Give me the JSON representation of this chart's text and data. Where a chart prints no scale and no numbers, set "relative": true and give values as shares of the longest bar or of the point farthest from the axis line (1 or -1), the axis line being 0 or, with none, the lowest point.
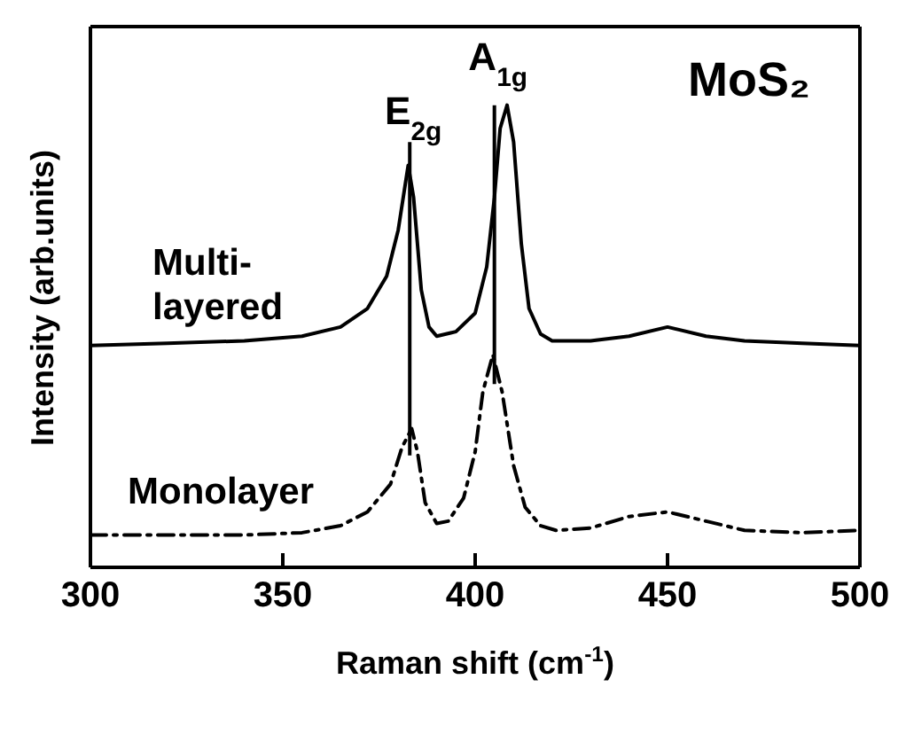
{
  "chart_data": {
    "type": "line",
    "relative": true,
    "xlabel": "Raman shift (cm$^{-1}$)",
    "ylabel": "Intensity (arb.units)",
    "xlim": [
      300,
      500
    ],
    "xticks": [
      300,
      350,
      400,
      450,
      500
    ],
    "legend": false,
    "grid": false,
    "marker": "none",
    "annotations": [
      "MoS₂"
    ],
    "ref_lines": [
      {
        "axis": "x",
        "value": 383,
        "label": "E$_{2g}$",
        "color": "#000000"
      },
      {
        "axis": "x",
        "value": 405,
        "label": "A$_{1g}$",
        "color": "#000000"
      }
    ],
    "series": [
      {
        "name": "Multi-layered",
        "color": "#000000",
        "line_style": "solid",
        "x": [
          300,
          320,
          340,
          355,
          365,
          372,
          377,
          380,
          382.6,
          384,
          386,
          388,
          390,
          395,
          400,
          403,
          405,
          406.5,
          408.3,
          410,
          412,
          414,
          417,
          420,
          430,
          440,
          450,
          460,
          470,
          485,
          500
        ],
        "values": [
          0.48,
          0.485,
          0.49,
          0.5,
          0.52,
          0.56,
          0.63,
          0.73,
          0.87,
          0.8,
          0.6,
          0.52,
          0.5,
          0.51,
          0.55,
          0.65,
          0.8,
          0.95,
          1.0,
          0.92,
          0.7,
          0.56,
          0.505,
          0.49,
          0.49,
          0.5,
          0.52,
          0.5,
          0.49,
          0.485,
          0.48
        ]
      },
      {
        "name": "Monolayer",
        "color": "#000000",
        "line_style": "dashed",
        "x": [
          300,
          320,
          340,
          355,
          365,
          372,
          378,
          381,
          383.5,
          385,
          387,
          390,
          393,
          397,
          400,
          402,
          404.6,
          407,
          410,
          413,
          417,
          421,
          430,
          440,
          450,
          460,
          470,
          485,
          500
        ],
        "values": [
          0.07,
          0.07,
          0.07,
          0.075,
          0.09,
          0.12,
          0.18,
          0.26,
          0.3,
          0.25,
          0.14,
          0.095,
          0.1,
          0.15,
          0.25,
          0.38,
          0.46,
          0.38,
          0.22,
          0.13,
          0.09,
          0.08,
          0.085,
          0.11,
          0.12,
          0.1,
          0.08,
          0.075,
          0.08
        ]
      }
    ]
  }
}
